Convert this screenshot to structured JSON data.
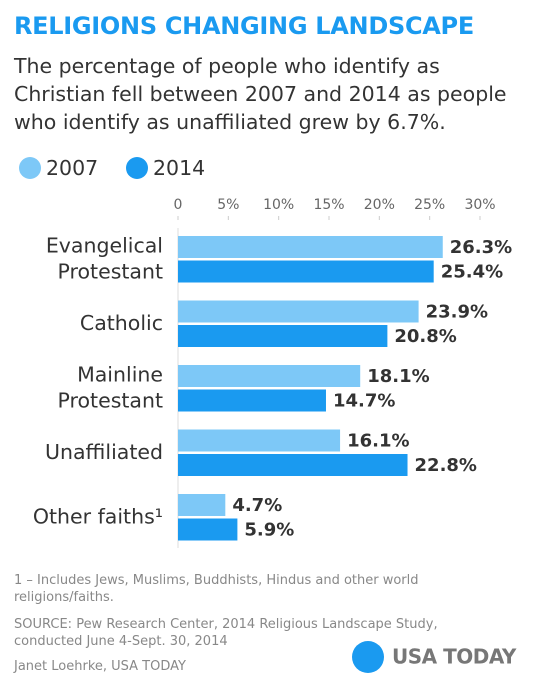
{
  "chart_data": {
    "type": "bar",
    "orientation": "horizontal",
    "title": "RELIGIONS CHANGING LANDSCAPE",
    "subtitle": "The percentage of people who identify as Christian fell between 2007 and 2014 as people who identify as unaffiliated grew by 6.7%.",
    "categories": [
      "Evangelical\nProtestant",
      "Catholic",
      "Mainline\nProtestant",
      "Unaffiliated",
      "Other faiths¹"
    ],
    "series": [
      {
        "name": "2007",
        "color": "#7dc8f7",
        "values": [
          26.3,
          23.9,
          18.1,
          16.1,
          4.7
        ],
        "value_labels": [
          "26.3%",
          "23.9%",
          "18.1%",
          "16.1%",
          "4.7%"
        ]
      },
      {
        "name": "2014",
        "color": "#1a9af0",
        "values": [
          25.4,
          20.8,
          14.7,
          22.8,
          5.9
        ],
        "value_labels": [
          "25.4%",
          "20.8%",
          "14.7%",
          "22.8%",
          "5.9%"
        ]
      }
    ],
    "xlim": [
      0,
      30
    ],
    "xticks": [
      0,
      {
        "value": 5,
        "label": "5%"
      },
      {
        "value": 10,
        "label": "10%"
      },
      {
        "value": 15,
        "label": "15%"
      },
      {
        "value": 20,
        "label": "20%"
      },
      {
        "value": 25,
        "label": "25%"
      },
      {
        "value": 30,
        "label": "30%"
      }
    ],
    "grid": false,
    "footnote": "1 – Includes Jews, Muslims, Buddhists, Hindus and other world religions/faiths.",
    "source": "SOURCE:  Pew Research Center, 2014 Religious Landscape Study, conducted June 4-Sept. 30, 2014",
    "credit": "Janet Loehrke, USA TODAY",
    "logo": "USA TODAY"
  }
}
